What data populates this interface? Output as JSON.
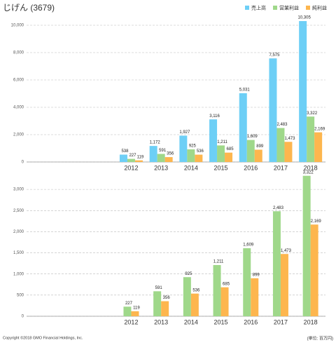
{
  "title": "じげん (3679)",
  "footer": {
    "copyright": "Copyright ©2018 GMO Financial Holdings, Inc.",
    "unit": "(単位: 百万円)"
  },
  "chart_data": [
    {
      "type": "bar",
      "categories": [
        null,
        null,
        null,
        "2012",
        "2013",
        "2014",
        "2015",
        "2016",
        "2017",
        "2018"
      ],
      "series": [
        {
          "name": "売上高",
          "color": "#6dcff6",
          "values": [
            null,
            null,
            null,
            538,
            1172,
            1927,
            3116,
            5031,
            7575,
            10305
          ],
          "value_labels": [
            null,
            null,
            null,
            "538",
            "1,172",
            "1,927",
            "3,116",
            "5,031",
            "7,575",
            "10,305"
          ]
        },
        {
          "name": "営業利益",
          "color": "#9fd88a",
          "values": [
            null,
            null,
            null,
            227,
            591,
            925,
            1211,
            1609,
            2483,
            3322
          ],
          "value_labels": [
            null,
            null,
            null,
            "227",
            "591",
            "925",
            "1,211",
            "1,609",
            "2,483",
            "3,322"
          ]
        },
        {
          "name": "純利益",
          "color": "#fdb64e",
          "values": [
            null,
            null,
            null,
            119,
            356,
            536,
            685,
            899,
            1473,
            2169
          ],
          "value_labels": [
            null,
            null,
            null,
            "119",
            "356",
            "536",
            "685",
            "899",
            "1,473",
            "2,169"
          ]
        }
      ],
      "ylim": [
        0,
        10500
      ],
      "yticks": [
        0,
        {
          "value": 2000,
          "label": "2,000"
        },
        {
          "value": 4000,
          "label": "4,000"
        },
        {
          "value": 6000,
          "label": "6,000"
        },
        {
          "value": 8000,
          "label": "8,000"
        },
        {
          "value": 10000,
          "label": "10,000"
        }
      ],
      "grid": true
    },
    {
      "type": "bar",
      "categories": [
        null,
        null,
        null,
        "2012",
        "2013",
        "2014",
        "2015",
        "2016",
        "2017",
        "2018"
      ],
      "series": [
        {
          "color": "#9fd88a",
          "values": [
            null,
            null,
            null,
            227,
            591,
            925,
            1211,
            1609,
            2483,
            3322
          ],
          "value_labels": [
            null,
            null,
            null,
            "227",
            "591",
            "925",
            "1,211",
            "1,609",
            "2,483",
            "3,322"
          ]
        },
        {
          "color": "#fdb64e",
          "values": [
            null,
            null,
            null,
            119,
            356,
            536,
            685,
            899,
            1473,
            2169
          ],
          "value_labels": [
            null,
            null,
            null,
            "119",
            "356",
            "536",
            "685",
            "899",
            "1,473",
            "2,169"
          ]
        }
      ],
      "ylim": [
        0,
        3400
      ],
      "yticks": [
        0,
        500,
        {
          "value": 1000,
          "label": "1,000"
        },
        {
          "value": 1500,
          "label": "1,500"
        },
        {
          "value": 2000,
          "label": "2,000"
        },
        {
          "value": 2500,
          "label": "2,500"
        },
        {
          "value": 3000,
          "label": "3,000"
        }
      ],
      "grid": true
    }
  ]
}
